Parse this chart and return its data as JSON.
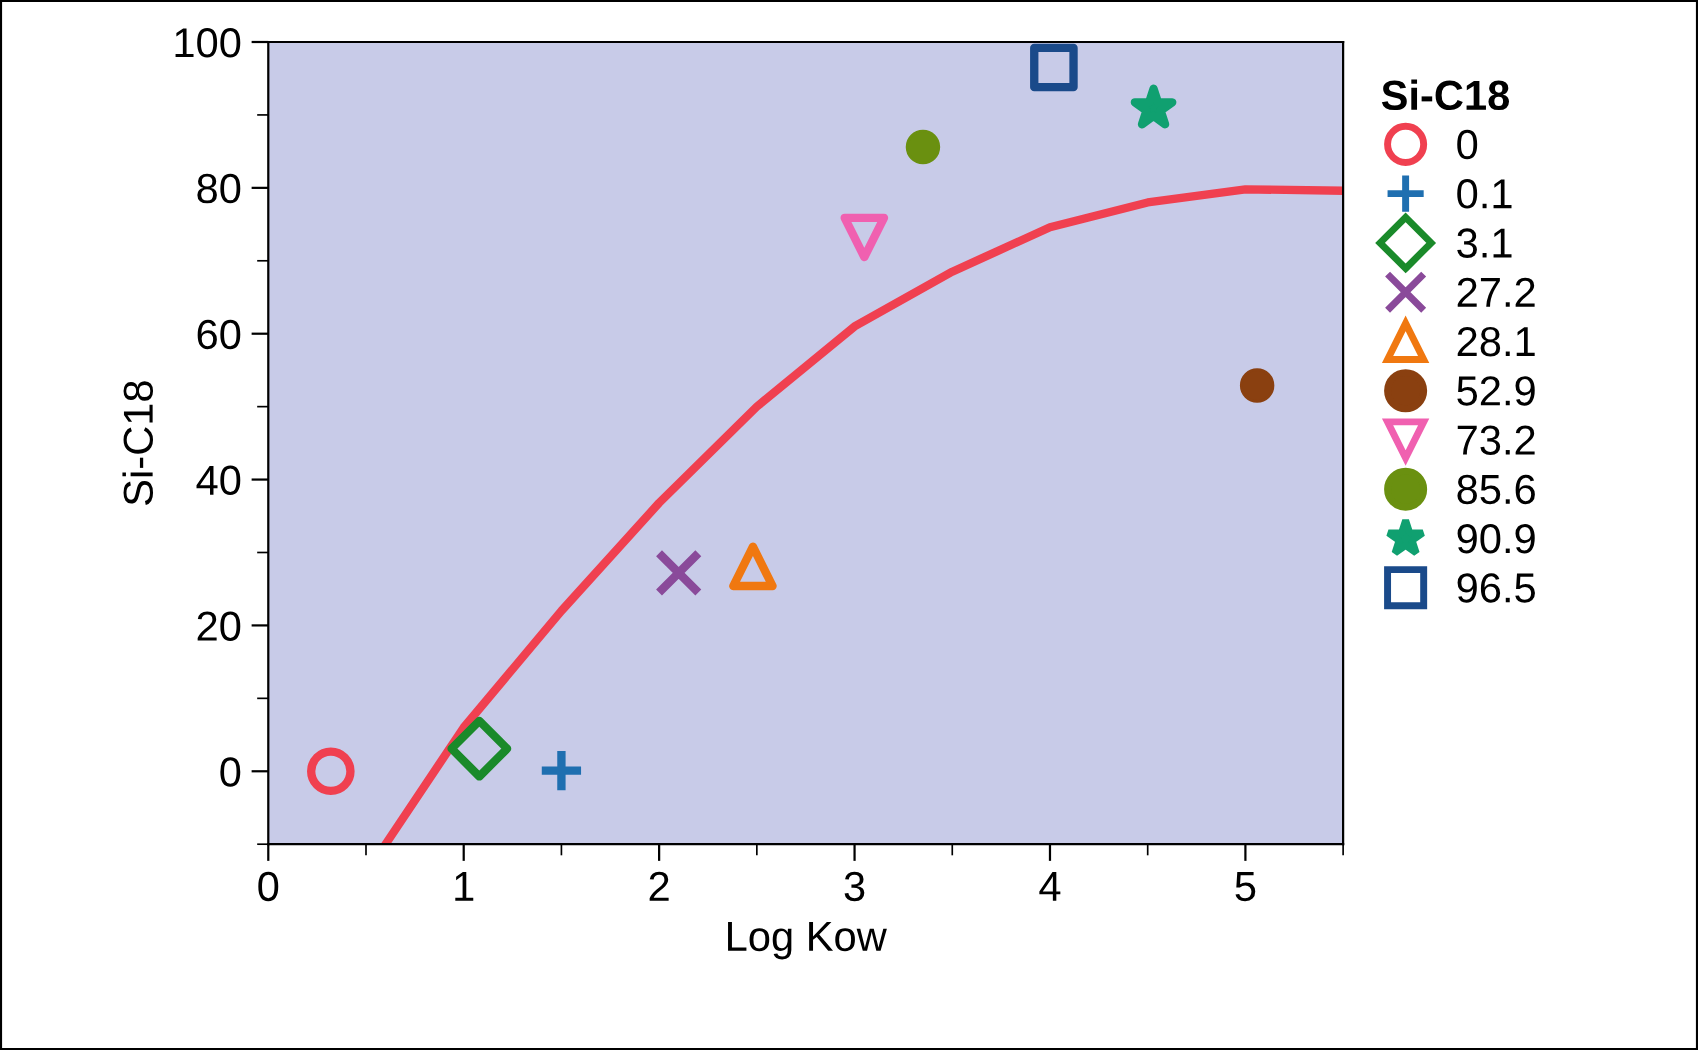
{
  "chart_data": {
    "type": "scatter",
    "xlabel": "Log Kow",
    "ylabel": "Si-C18",
    "legend_title": "Si-C18",
    "legend": "right",
    "xlim": [
      0,
      5.5
    ],
    "ylim": [
      -10,
      100
    ],
    "xticks": [
      0,
      1,
      2,
      3,
      4,
      5
    ],
    "yticks": [
      0,
      20,
      40,
      60,
      80,
      100
    ],
    "grid": false,
    "series": [
      {
        "name": "0",
        "color": "#f04050",
        "marker": "circle",
        "x": [
          0.32
        ],
        "values": [
          0
        ]
      },
      {
        "name": "0.1",
        "color": "#1f6fb0",
        "marker": "plus",
        "x": [
          1.5
        ],
        "values": [
          0.1
        ]
      },
      {
        "name": "3.1",
        "color": "#1a8a2a",
        "marker": "diamond",
        "x": [
          1.08
        ],
        "values": [
          3.1
        ]
      },
      {
        "name": "27.2",
        "color": "#8a4a9a",
        "marker": "x",
        "x": [
          2.1
        ],
        "values": [
          27.2
        ]
      },
      {
        "name": "28.1",
        "color": "#f07810",
        "marker": "triangle",
        "x": [
          2.48
        ],
        "values": [
          28.1
        ]
      },
      {
        "name": "52.9",
        "color": "#8a4010",
        "x": [
          5.06
        ],
        "values": [
          52.9
        ]
      },
      {
        "name": "73.2",
        "color": "#f060b0",
        "marker": "triangle_down",
        "x": [
          3.05
        ],
        "values": [
          73.2
        ]
      },
      {
        "name": "85.6",
        "color": "#6a9010",
        "x": [
          3.35
        ],
        "values": [
          85.6
        ]
      },
      {
        "name": "90.9",
        "color": "#10a070",
        "marker": "star",
        "x": [
          4.53
        ],
        "values": [
          90.9
        ]
      },
      {
        "name": "96.5",
        "color": "#1a4a8a",
        "marker": "square",
        "x": [
          4.02
        ],
        "values": [
          96.5
        ]
      },
      {
        "type": "line",
        "color": "#f04050",
        "marker": "none",
        "x": [
          0.6,
          1.0,
          1.5,
          2.0,
          2.5,
          3.0,
          3.5,
          4.0,
          4.5,
          5.0,
          5.5
        ],
        "values": [
          -10,
          6,
          22,
          36.8,
          50,
          61,
          68.5,
          74.6,
          78,
          79.8,
          79.6
        ]
      }
    ]
  }
}
